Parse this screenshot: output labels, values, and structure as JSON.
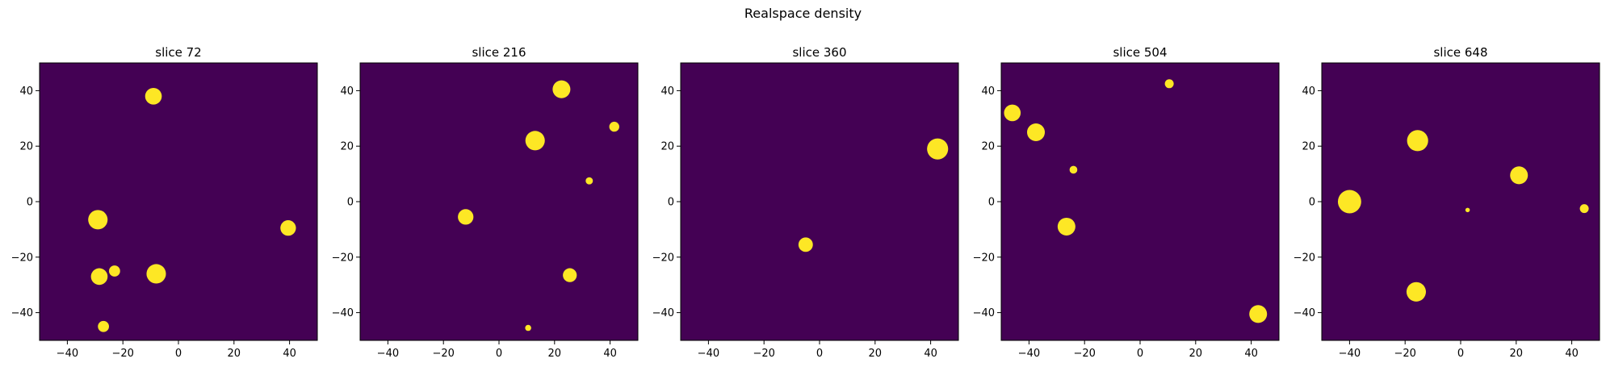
{
  "figure": {
    "suptitle": "Realspace density",
    "background": "#ffffff",
    "plot_background": "#440154",
    "blob_color": "#fde725"
  },
  "chart_data": [
    {
      "type": "heatmap",
      "title": "slice 72",
      "xlim": [
        -50,
        50
      ],
      "ylim": [
        -50,
        50
      ],
      "xticks": [
        -40,
        -20,
        0,
        20,
        40
      ],
      "yticks": [
        -40,
        -20,
        0,
        20,
        40
      ],
      "xlabel": "",
      "ylabel": "",
      "grid": false,
      "blobs": [
        {
          "x": -9,
          "y": 38,
          "r": 3
        },
        {
          "x": -29,
          "y": -6.5,
          "r": 3.5
        },
        {
          "x": -28.5,
          "y": -27,
          "r": 3
        },
        {
          "x": -23,
          "y": -25,
          "r": 2
        },
        {
          "x": -8,
          "y": -26,
          "r": 3.5
        },
        {
          "x": -27,
          "y": -45,
          "r": 2
        },
        {
          "x": 39.5,
          "y": -9.5,
          "r": 2.8
        }
      ]
    },
    {
      "type": "heatmap",
      "title": "slice 216",
      "xlim": [
        -50,
        50
      ],
      "ylim": [
        -50,
        50
      ],
      "xticks": [
        -40,
        -20,
        0,
        20,
        40
      ],
      "yticks": [
        -40,
        -20,
        0,
        20,
        40
      ],
      "xlabel": "",
      "ylabel": "",
      "grid": false,
      "blobs": [
        {
          "x": 22.5,
          "y": 40.5,
          "r": 3.2
        },
        {
          "x": 41.5,
          "y": 27,
          "r": 1.8
        },
        {
          "x": 13,
          "y": 22,
          "r": 3.5
        },
        {
          "x": 32.5,
          "y": 7.5,
          "r": 1.3
        },
        {
          "x": -12,
          "y": -5.5,
          "r": 2.8
        },
        {
          "x": 25.5,
          "y": -26.5,
          "r": 2.5
        },
        {
          "x": 10.5,
          "y": -45.5,
          "r": 1.1
        }
      ]
    },
    {
      "type": "heatmap",
      "title": "slice 360",
      "xlim": [
        -50,
        50
      ],
      "ylim": [
        -50,
        50
      ],
      "xticks": [
        -40,
        -20,
        0,
        20,
        40
      ],
      "yticks": [
        -40,
        -20,
        0,
        20,
        40
      ],
      "xlabel": "",
      "ylabel": "",
      "grid": false,
      "blobs": [
        {
          "x": 42.5,
          "y": 19,
          "r": 3.8
        },
        {
          "x": -5,
          "y": -15.5,
          "r": 2.6
        }
      ]
    },
    {
      "type": "heatmap",
      "title": "slice 504",
      "xlim": [
        -50,
        50
      ],
      "ylim": [
        -50,
        50
      ],
      "xticks": [
        -40,
        -20,
        0,
        20,
        40
      ],
      "yticks": [
        -40,
        -20,
        0,
        20,
        40
      ],
      "xlabel": "",
      "ylabel": "",
      "grid": false,
      "blobs": [
        {
          "x": 10.5,
          "y": 42.5,
          "r": 1.6
        },
        {
          "x": -46,
          "y": 32,
          "r": 3
        },
        {
          "x": -37.5,
          "y": 25,
          "r": 3.2
        },
        {
          "x": -24,
          "y": 11.5,
          "r": 1.4
        },
        {
          "x": -26.5,
          "y": -9,
          "r": 3.2
        },
        {
          "x": 42.5,
          "y": -40.5,
          "r": 3.2
        }
      ]
    },
    {
      "type": "heatmap",
      "title": "slice 648",
      "xlim": [
        -50,
        50
      ],
      "ylim": [
        -50,
        50
      ],
      "xticks": [
        -40,
        -20,
        0,
        20,
        40
      ],
      "yticks": [
        -40,
        -20,
        0,
        20,
        40
      ],
      "xlabel": "",
      "ylabel": "",
      "grid": false,
      "blobs": [
        {
          "x": -15.5,
          "y": 22,
          "r": 3.8
        },
        {
          "x": 21,
          "y": 9.5,
          "r": 3.2
        },
        {
          "x": -40,
          "y": 0,
          "r": 4.2
        },
        {
          "x": 2.5,
          "y": -3,
          "r": 0.8
        },
        {
          "x": 44.5,
          "y": -2.5,
          "r": 1.6
        },
        {
          "x": -16,
          "y": -32.5,
          "r": 3.5
        }
      ]
    }
  ]
}
